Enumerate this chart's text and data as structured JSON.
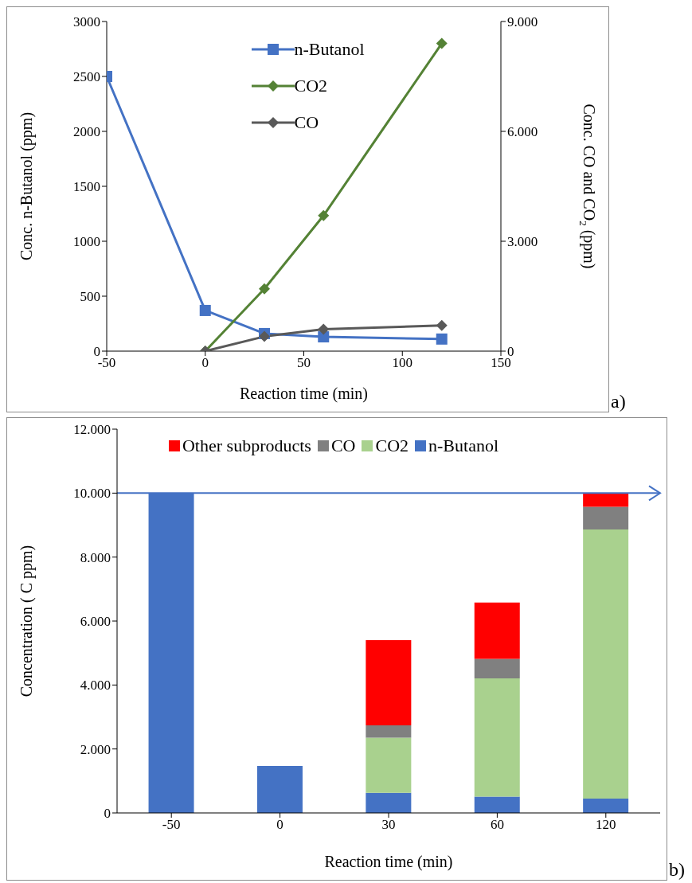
{
  "chart_data": [
    {
      "type": "line",
      "x": [
        -50,
        0,
        30,
        60,
        120
      ],
      "xlim": [
        -50,
        150
      ],
      "xticks": [
        -50,
        0,
        50,
        100,
        150
      ],
      "ylim": [
        0,
        3000
      ],
      "yticks": [
        0,
        500,
        1000,
        1500,
        2000,
        2500,
        3000
      ],
      "y2lim": [
        0,
        9000
      ],
      "y2ticks": [
        {
          "value": 0,
          "label": "0"
        },
        {
          "value": 3000,
          "label": "3.000"
        },
        {
          "value": 6000,
          "label": "6.000"
        },
        {
          "value": 9000,
          "label": "9.000"
        }
      ],
      "xlabel": "Reaction time (min)",
      "ylabel": "Conc. n-Butanol (ppm)",
      "y2label": "Conc. CO and CO$_{2}$ (ppm)",
      "legend": "top",
      "annotations": [
        "a)"
      ],
      "series": [
        {
          "name": "n-Butanol",
          "color": "#4472c4",
          "marker": "square",
          "values": [
            2500,
            370,
            160,
            130,
            110
          ]
        },
        {
          "name": "CO2",
          "color": "#548235",
          "marker": "diamond",
          "axis": "y2",
          "values": [
            null,
            0,
            1700,
            3700,
            8400
          ]
        },
        {
          "name": "CO",
          "color": "#595959",
          "marker": "diamond",
          "axis": "y2",
          "values": [
            null,
            0,
            400,
            600,
            700
          ]
        }
      ]
    },
    {
      "type": "bar",
      "stacked": true,
      "categories": [
        "-50",
        "0",
        "30",
        "60",
        "120"
      ],
      "ylim": [
        0,
        12000
      ],
      "yticks": [
        {
          "value": 0,
          "label": "0"
        },
        {
          "value": 2000,
          "label": "2.000"
        },
        {
          "value": 4000,
          "label": "4.000"
        },
        {
          "value": 6000,
          "label": "6.000"
        },
        {
          "value": 8000,
          "label": "8.000"
        },
        {
          "value": 10000,
          "label": "10.000"
        },
        {
          "value": 12000,
          "label": "12.000"
        }
      ],
      "xlabel": "Reaction time (min)",
      "ylabel": "Concentration ( C ppm)",
      "legend": "top",
      "annotations": [
        "b)"
      ],
      "ref_lines": [
        {
          "axis": "y",
          "value": 10000,
          "color": "#4472c4"
        }
      ],
      "series": [
        {
          "name": "n-Butanol",
          "color": "#4472c4",
          "values": [
            10000,
            1470,
            630,
            510,
            450
          ]
        },
        {
          "name": "CO2",
          "color": "#a9d18e",
          "values": [
            null,
            null,
            1720,
            3700,
            8410
          ]
        },
        {
          "name": "CO",
          "color": "#808080",
          "values": [
            null,
            null,
            390,
            610,
            710
          ]
        },
        {
          "name": "Other subproducts",
          "color": "#ff0000",
          "values": [
            null,
            null,
            2660,
            1760,
            440
          ]
        }
      ]
    }
  ]
}
